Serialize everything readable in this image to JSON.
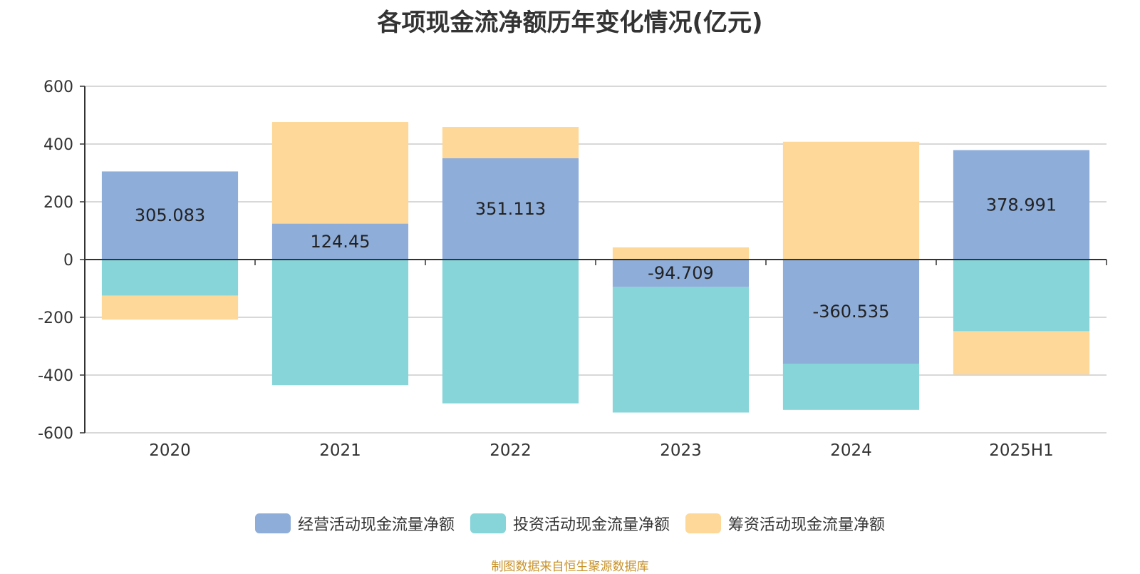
{
  "chart_data": {
    "type": "bar",
    "stacked": true,
    "title": "各项现金流净额历年变化情况(亿元)",
    "categories": [
      "2020",
      "2021",
      "2022",
      "2023",
      "2024",
      "2025H1"
    ],
    "ylim": [
      -600,
      600
    ],
    "yticks": [
      600,
      400,
      200,
      0,
      -200,
      -400,
      -600
    ],
    "grid": true,
    "legend_position": "bottom",
    "series": [
      {
        "name": "经营活动现金流量净额",
        "color": "#8eadd9",
        "values": [
          305.083,
          124.45,
          351.113,
          -94.709,
          -360.535,
          378.991
        ],
        "labels": [
          "305.083",
          "124.45",
          "351.113",
          "-94.709",
          "-360.535",
          "378.991"
        ]
      },
      {
        "name": "投资活动现金流量净额",
        "color": "#87d5d8",
        "values": [
          -125,
          -435,
          -498,
          -435,
          -160,
          -248
        ]
      },
      {
        "name": "筹资活动现金流量净额",
        "color": "#fdd898",
        "values": [
          -83,
          352,
          108,
          42,
          408,
          -150
        ]
      }
    ]
  },
  "legend": {
    "items": [
      "经营活动现金流量净额",
      "投资活动现金流量净额",
      "筹资活动现金流量净额"
    ]
  },
  "footer": {
    "source": "制图数据来自恒生聚源数据库"
  }
}
